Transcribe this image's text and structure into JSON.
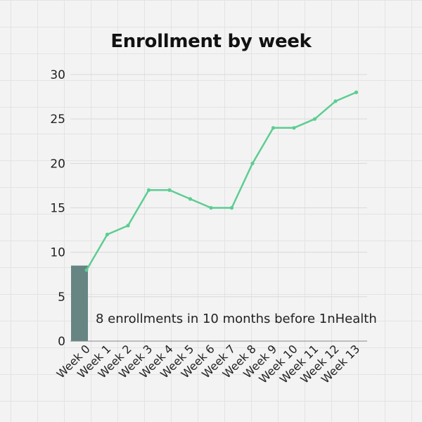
{
  "chart_data": {
    "type": "line",
    "title": "Enrollment by week",
    "categories": [
      "Week 0",
      "Week 1",
      "Week 2",
      "Week 3",
      "Week 4",
      "Week 5",
      "Week 6",
      "Week 7",
      "Week 8",
      "Week 9",
      "Week 10",
      "Week 11",
      "Week 12",
      "Week 13"
    ],
    "series": [
      {
        "name": "Enrollments",
        "values": [
          8,
          12,
          13,
          17,
          17,
          16,
          15,
          15,
          20,
          24,
          24,
          25,
          27,
          28
        ]
      }
    ],
    "baseline_bar": {
      "category": "Week 0",
      "value": 8.5
    },
    "annotation": "8 enrollments in 10 months before 1nHealth",
    "yticks": [
      0,
      5,
      10,
      15,
      20,
      25,
      30
    ],
    "ylim": [
      0,
      30
    ],
    "xlabel": "",
    "ylabel": "",
    "grid": true,
    "colors": {
      "line": "#5ccd92",
      "bar": "#668583",
      "gridline": "#d9d9d9",
      "axis": "#888888"
    }
  }
}
